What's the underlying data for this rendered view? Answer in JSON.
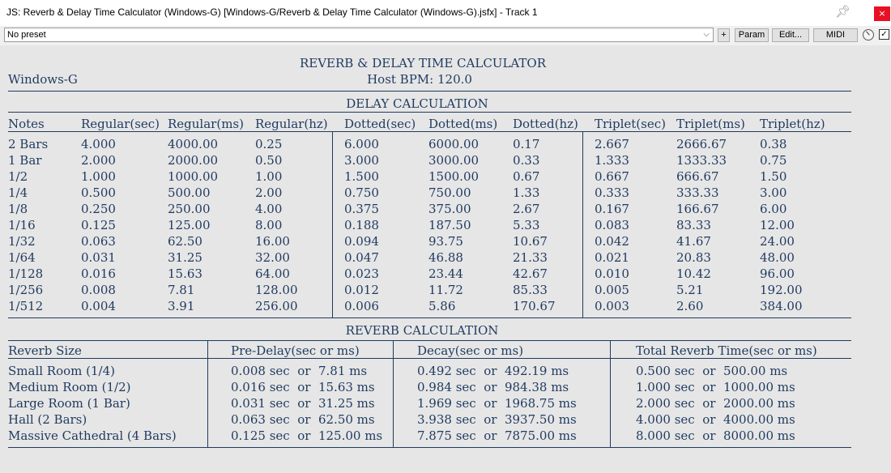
{
  "window": {
    "title": "JS: Reverb & Delay Time Calculator (Windows-G) [Windows-G/Reverb & Delay Time Calculator (Windows-G).jsfx] - Track 1",
    "close_label": "×"
  },
  "toolbar": {
    "preset_value": "No preset",
    "plus_label": "+",
    "param_label": "Param",
    "edit_label": "Edit...",
    "midi_label": "MIDI",
    "check_mark": "✓"
  },
  "plugin": {
    "title": "REVERB & DELAY TIME CALCULATOR",
    "author": "Windows-G",
    "host_bpm": "Host BPM: 120.0"
  },
  "delay": {
    "heading": "DELAY CALCULATION",
    "headers": [
      "Notes",
      "Regular(sec)",
      "Regular(ms)",
      "Regular(hz)",
      "Dotted(sec)",
      "Dotted(ms)",
      "Dotted(hz)",
      "Triplet(sec)",
      "Triplet(ms)",
      "Triplet(hz)"
    ],
    "rows": [
      [
        "2 Bars",
        "4.000",
        "4000.00",
        "0.25",
        "6.000",
        "6000.00",
        "0.17",
        "2.667",
        "2666.67",
        "0.38"
      ],
      [
        "1 Bar",
        "2.000",
        "2000.00",
        "0.50",
        "3.000",
        "3000.00",
        "0.33",
        "1.333",
        "1333.33",
        "0.75"
      ],
      [
        "1/2",
        "1.000",
        "1000.00",
        "1.00",
        "1.500",
        "1500.00",
        "0.67",
        "0.667",
        "666.67",
        "1.50"
      ],
      [
        "1/4",
        "0.500",
        "500.00",
        "2.00",
        "0.750",
        "750.00",
        "1.33",
        "0.333",
        "333.33",
        "3.00"
      ],
      [
        "1/8",
        "0.250",
        "250.00",
        "4.00",
        "0.375",
        "375.00",
        "2.67",
        "0.167",
        "166.67",
        "6.00"
      ],
      [
        "1/16",
        "0.125",
        "125.00",
        "8.00",
        "0.188",
        "187.50",
        "5.33",
        "0.083",
        "83.33",
        "12.00"
      ],
      [
        "1/32",
        "0.063",
        "62.50",
        "16.00",
        "0.094",
        "93.75",
        "10.67",
        "0.042",
        "41.67",
        "24.00"
      ],
      [
        "1/64",
        "0.031",
        "31.25",
        "32.00",
        "0.047",
        "46.88",
        "21.33",
        "0.021",
        "20.83",
        "48.00"
      ],
      [
        "1/128",
        "0.016",
        "15.63",
        "64.00",
        "0.023",
        "23.44",
        "42.67",
        "0.010",
        "10.42",
        "96.00"
      ],
      [
        "1/256",
        "0.008",
        "7.81",
        "128.00",
        "0.012",
        "11.72",
        "85.33",
        "0.005",
        "5.21",
        "192.00"
      ],
      [
        "1/512",
        "0.004",
        "3.91",
        "256.00",
        "0.006",
        "5.86",
        "170.67",
        "0.003",
        "2.60",
        "384.00"
      ]
    ]
  },
  "reverb": {
    "heading": "REVERB CALCULATION",
    "headers": [
      "Reverb Size",
      "Pre-Delay(sec or ms)",
      "Decay(sec or ms)",
      "Total Reverb Time(sec or ms)"
    ],
    "rows": [
      [
        "Small Room (1/4)",
        "0.008 sec  or  7.81 ms",
        "0.492 sec  or  492.19 ms",
        "0.500 sec  or  500.00 ms"
      ],
      [
        "Medium Room (1/2)",
        "0.016 sec  or  15.63 ms",
        "0.984 sec  or  984.38 ms",
        "1.000 sec  or  1000.00 ms"
      ],
      [
        "Large Room (1 Bar)",
        "0.031 sec  or  31.25 ms",
        "1.969 sec  or  1968.75 ms",
        "2.000 sec  or  2000.00 ms"
      ],
      [
        "Hall (2 Bars)",
        "0.063 sec  or  62.50 ms",
        "3.938 sec  or  3937.50 ms",
        "4.000 sec  or  4000.00 ms"
      ],
      [
        "Massive Cathedral (4 Bars)",
        "0.125 sec  or  125.00 ms",
        "7.875 sec  or  7875.00 ms",
        "8.000 sec  or  8000.00 ms"
      ]
    ]
  }
}
